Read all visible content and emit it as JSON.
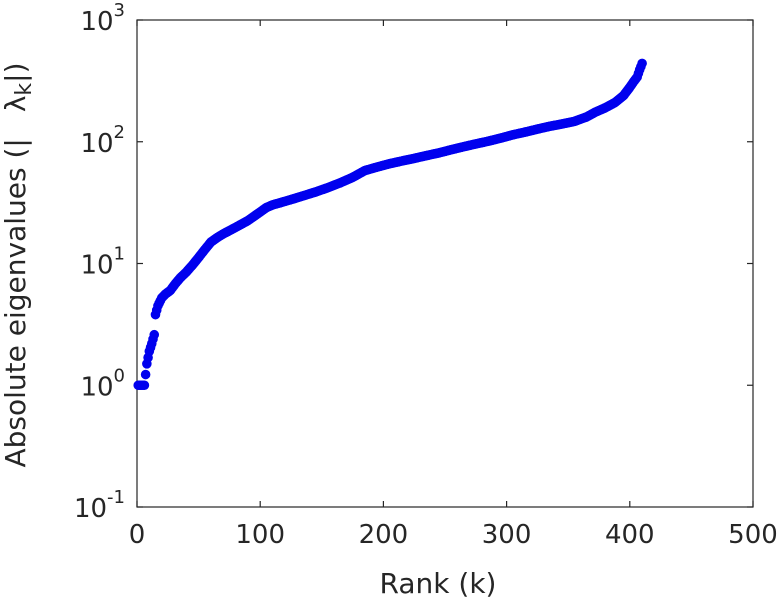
{
  "chart_data": {
    "type": "scatter",
    "xlabel": "Rank (k)",
    "ylabel": "Absolute eigenvalues (|λ_k|)",
    "ylabel_parts": {
      "prefix": "Absolute eigenvalues (|",
      "lambda": "λ",
      "sub": "k",
      "suffix": "|)"
    },
    "xlim": [
      0,
      500
    ],
    "ylim": [
      0.1,
      1000
    ],
    "y_scale": "log",
    "grid": false,
    "legend": "none",
    "x_ticks": [
      {
        "value": 0,
        "label": "0"
      },
      {
        "value": 100,
        "label": "100"
      },
      {
        "value": 200,
        "label": "200"
      },
      {
        "value": 300,
        "label": "300"
      },
      {
        "value": 400,
        "label": "400"
      },
      {
        "value": 500,
        "label": "500"
      }
    ],
    "y_ticks": [
      {
        "value": 0.1,
        "base": "10",
        "exp": "-1"
      },
      {
        "value": 1,
        "base": "10",
        "exp": "0"
      },
      {
        "value": 10,
        "base": "10",
        "exp": "1"
      },
      {
        "value": 100,
        "base": "10",
        "exp": "2"
      },
      {
        "value": 1000,
        "base": "10",
        "exp": "3"
      }
    ],
    "marker_color": "#0000ee",
    "series": [
      {
        "x": [
          1,
          3,
          6,
          8,
          10,
          12,
          14,
          15,
          17,
          20,
          23,
          27,
          31,
          35,
          40,
          45,
          50,
          55,
          60,
          65,
          70,
          80,
          90,
          100,
          105,
          110,
          115,
          125,
          135,
          145,
          155,
          165,
          175,
          185,
          195,
          205,
          215,
          225,
          235,
          245,
          255,
          265,
          275,
          285,
          295,
          305,
          315,
          325,
          335,
          345,
          355,
          365,
          372,
          380,
          388,
          395,
          400,
          403,
          406,
          408,
          410
        ],
        "y": [
          1.0,
          1.0,
          1.0,
          1.5,
          1.9,
          2.2,
          2.6,
          3.8,
          4.5,
          5.2,
          5.6,
          6.0,
          6.8,
          7.6,
          8.5,
          9.7,
          11.2,
          13.0,
          15.0,
          16.3,
          17.5,
          19.8,
          22.5,
          26.5,
          28.8,
          30.3,
          31.3,
          33.5,
          36.0,
          38.7,
          42.0,
          46.0,
          51.0,
          58.0,
          62.0,
          66.0,
          69.5,
          73.0,
          77.0,
          81.0,
          86.0,
          91.0,
          96.0,
          101.0,
          107.0,
          114.0,
          120.0,
          127.0,
          134.0,
          140.0,
          147.0,
          160.0,
          175.0,
          190.0,
          210.0,
          240.0,
          280.0,
          310.0,
          340.0,
          390.0,
          440.0
        ]
      }
    ]
  }
}
